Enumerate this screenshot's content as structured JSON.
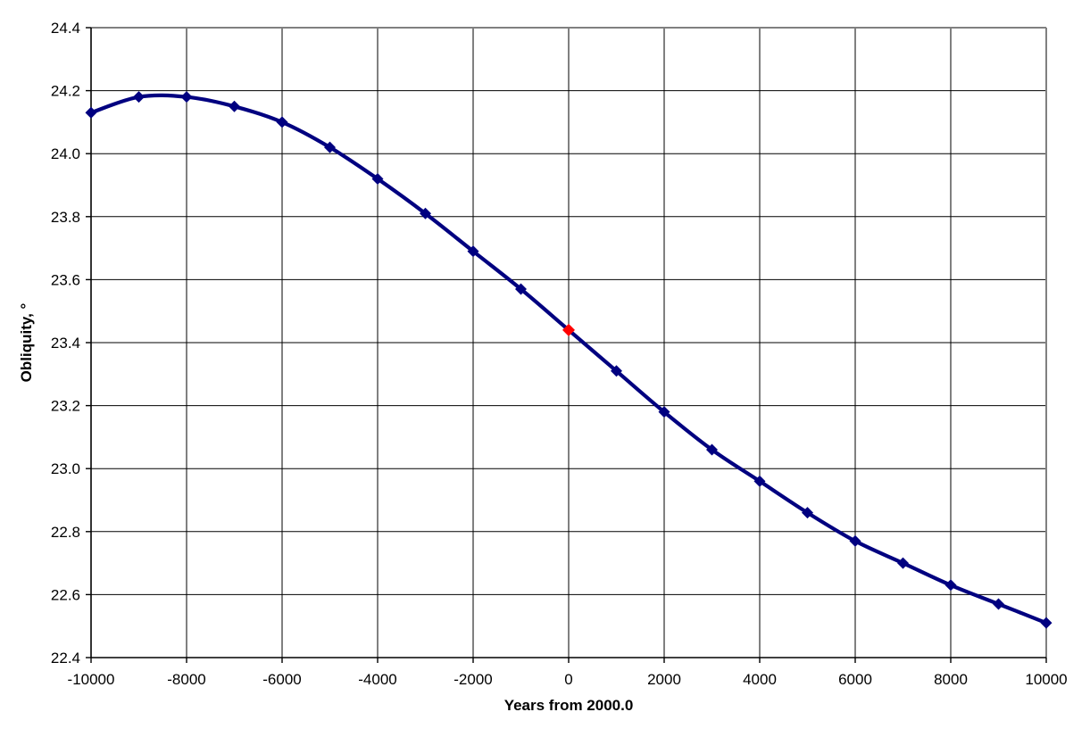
{
  "chart_data": {
    "type": "line",
    "title": "",
    "xlabel": "Years from 2000.0",
    "ylabel": "Obliquity, °",
    "x": [
      -10000,
      -9000,
      -8000,
      -7000,
      -6000,
      -5000,
      -4000,
      -3000,
      -2000,
      -1000,
      0,
      1000,
      2000,
      3000,
      4000,
      5000,
      6000,
      7000,
      8000,
      9000,
      10000
    ],
    "series": [
      {
        "name": "Obliquity",
        "values": [
          24.13,
          24.18,
          24.18,
          24.15,
          24.1,
          24.02,
          23.92,
          23.81,
          23.69,
          23.57,
          23.44,
          23.31,
          23.18,
          23.06,
          22.96,
          22.86,
          22.77,
          22.7,
          22.63,
          22.57,
          22.51
        ]
      }
    ],
    "highlight_point": {
      "x": 0,
      "value": 23.44
    },
    "xlim": [
      -10000,
      10000
    ],
    "ylim": [
      22.4,
      24.4
    ],
    "x_tick_labels": [
      "-10000",
      "-8000",
      "-6000",
      "-4000",
      "-2000",
      "0",
      "2000",
      "4000",
      "6000",
      "8000",
      "10000"
    ],
    "y_tick_labels": [
      "24.4",
      "24.2",
      "24.0",
      "23.8",
      "23.6",
      "23.4",
      "23.2",
      "23.0",
      "22.8",
      "22.6",
      "22.4"
    ],
    "grid": true,
    "legend": "none",
    "marker": "diamond",
    "smooth_line": true,
    "colors": {
      "line": "#000080",
      "marker": "#000080",
      "highlight_marker": "#ff0000",
      "gridline": "#000000",
      "axis": "#000000",
      "plot_border": "#808080",
      "background": "#ffffff",
      "text": "#000000"
    }
  }
}
